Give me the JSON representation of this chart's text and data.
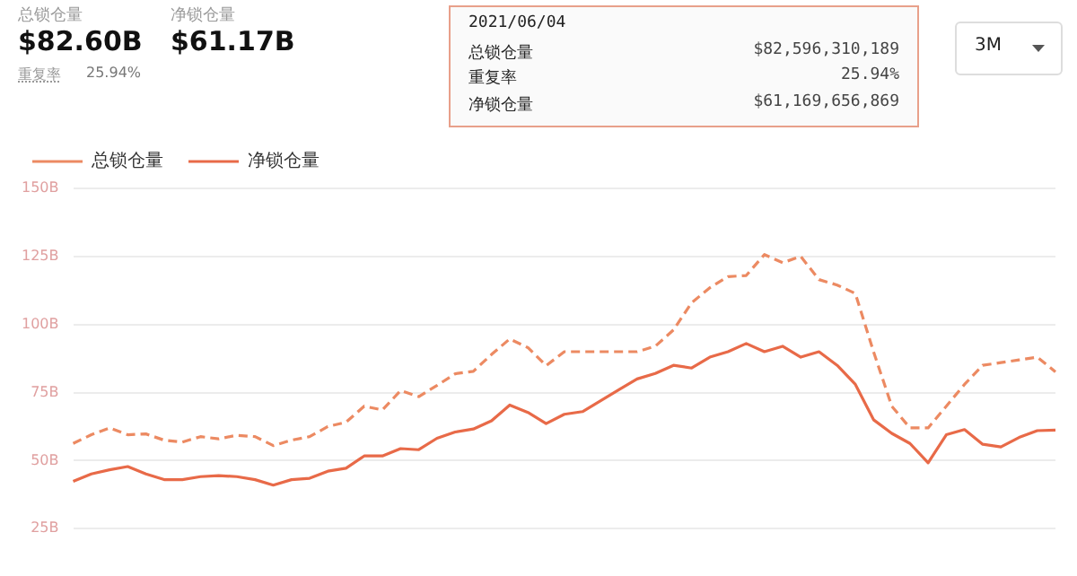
{
  "chart_data": {
    "type": "line",
    "categories": [
      null,
      null,
      null,
      null,
      null,
      null,
      null,
      null,
      null,
      null,
      null,
      null,
      null,
      null,
      null,
      null,
      null,
      null,
      null,
      null,
      null,
      null,
      null,
      null,
      null,
      null,
      null,
      null,
      null,
      null,
      null,
      null,
      null,
      null,
      null,
      null,
      null,
      null,
      null,
      null,
      null,
      null,
      null,
      null,
      null,
      null,
      null,
      null,
      null,
      null,
      null,
      null,
      null,
      null,
      null
    ],
    "series": [
      {
        "name": "总锁仓量",
        "color": "#ec8a62",
        "line_style": "dashed",
        "values": [
          56.3,
          59.5,
          62,
          59.5,
          59.8,
          57.5,
          56.8,
          58.8,
          58,
          59.3,
          58.8,
          55.5,
          57.5,
          58.8,
          62.5,
          64.1,
          70,
          68.6,
          75.7,
          73.5,
          77.6,
          81.9,
          82.8,
          89,
          94.7,
          91.5,
          84.9,
          90,
          90,
          90,
          90,
          90,
          92,
          98,
          108,
          113.5,
          117.6,
          118,
          125.7,
          122.7,
          125,
          116.5,
          114.5,
          111.4,
          90,
          70,
          62,
          62,
          70,
          78,
          85,
          86,
          87,
          88,
          82.6
        ]
      },
      {
        "name": "净锁仓量",
        "color": "#e86a48",
        "line_style": "solid",
        "values": [
          42.4,
          45.1,
          46.6,
          47.8,
          45.1,
          43,
          43,
          44.1,
          44.5,
          44.1,
          43,
          41,
          43,
          43.5,
          46.1,
          47.2,
          51.7,
          51.7,
          54.4,
          54,
          58.2,
          60.5,
          61.6,
          64.6,
          70.4,
          67.7,
          63.6,
          67,
          68,
          72,
          76,
          80,
          82,
          85,
          84,
          88,
          90,
          93,
          90,
          92,
          88,
          90,
          85,
          78,
          65,
          60,
          56.3,
          49.2,
          59.5,
          61.4,
          56,
          55,
          58.5,
          61,
          61.2
        ]
      }
    ],
    "ylim": [
      25,
      150
    ],
    "yticks": [
      {
        "value": 25,
        "label": "25B"
      },
      {
        "value": 50,
        "label": "50B"
      },
      {
        "value": 75,
        "label": "75B"
      },
      {
        "value": 100,
        "label": "100B"
      },
      {
        "value": 125,
        "label": "125B"
      },
      {
        "value": 150,
        "label": "150B"
      }
    ],
    "grid": "y",
    "legend": "top left",
    "marker": "none",
    "annotations": [
      "总锁仓量",
      "$82.60B",
      "净锁仓量",
      "$61.17B",
      "重复率",
      "25.94%",
      "3M",
      "2021/06/04",
      "总锁仓量",
      "$82,596,310,189",
      "重复率",
      "25.94%",
      "净锁仓量",
      "$61,169,656,869"
    ]
  }
}
